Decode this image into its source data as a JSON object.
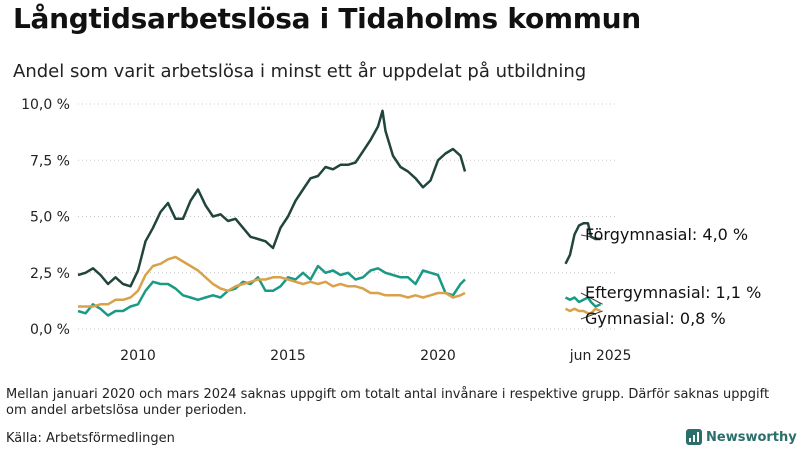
{
  "title": "Långtidsarbetslösa i Tidaholms kommun",
  "subtitle": "Andel som varit arbetslösa i minst ett år uppdelat på utbildning",
  "note": "Mellan januari 2020 och mars 2024 saknas uppgift om totalt antal invånare i respektive grupp. Därför saknas uppgift om andel arbetslösa under perioden.",
  "source": "Källa: Arbetsförmedlingen",
  "brand": {
    "name": "Newsworthy",
    "icon": "chart-bars-icon",
    "color": "#2b6f6b"
  },
  "chart_data": {
    "type": "line",
    "title": "",
    "xlabel": "",
    "ylabel": "",
    "x_ticks": [
      {
        "x": 2010.0,
        "label": "2010"
      },
      {
        "x": 2015.0,
        "label": "2015"
      },
      {
        "x": 2020.0,
        "label": "2020"
      },
      {
        "x": 2025.42,
        "label": "jun 2025"
      }
    ],
    "y_ticks": [
      {
        "y": 0.0,
        "label": "0,0 %"
      },
      {
        "y": 2.5,
        "label": "2,5 %"
      },
      {
        "y": 5.0,
        "label": "5,0 %"
      },
      {
        "y": 7.5,
        "label": "7,5 %"
      },
      {
        "y": 10.0,
        "label": "10,0 %"
      }
    ],
    "ylim": [
      0,
      10
    ],
    "xlim": [
      2008.0,
      2026.0
    ],
    "grid": "horizontal, dotted, at y ticks",
    "gap": {
      "from": 2020.0,
      "to": 2024.25
    },
    "series": [
      {
        "name": "Förgymnasial",
        "end_label": "Förgymnasial: 4,0 %",
        "color": "#21453d",
        "points": [
          [
            2008.0,
            2.4
          ],
          [
            2008.25,
            2.5
          ],
          [
            2008.5,
            2.7
          ],
          [
            2008.75,
            2.4
          ],
          [
            2009.0,
            2.0
          ],
          [
            2009.25,
            2.3
          ],
          [
            2009.5,
            2.0
          ],
          [
            2009.75,
            1.9
          ],
          [
            2010.0,
            2.6
          ],
          [
            2010.25,
            3.9
          ],
          [
            2010.5,
            4.5
          ],
          [
            2010.75,
            5.2
          ],
          [
            2011.0,
            5.6
          ],
          [
            2011.25,
            4.9
          ],
          [
            2011.5,
            4.9
          ],
          [
            2011.75,
            5.7
          ],
          [
            2012.0,
            6.2
          ],
          [
            2012.25,
            5.5
          ],
          [
            2012.5,
            5.0
          ],
          [
            2012.75,
            5.1
          ],
          [
            2013.0,
            4.8
          ],
          [
            2013.25,
            4.9
          ],
          [
            2013.5,
            4.5
          ],
          [
            2013.75,
            4.1
          ],
          [
            2014.0,
            4.0
          ],
          [
            2014.25,
            3.9
          ],
          [
            2014.5,
            3.6
          ],
          [
            2014.75,
            4.5
          ],
          [
            2015.0,
            5.0
          ],
          [
            2015.25,
            5.7
          ],
          [
            2015.5,
            6.2
          ],
          [
            2015.75,
            6.7
          ],
          [
            2016.0,
            6.8
          ],
          [
            2016.25,
            7.2
          ],
          [
            2016.5,
            7.1
          ],
          [
            2016.75,
            7.3
          ],
          [
            2017.0,
            7.3
          ],
          [
            2017.25,
            7.4
          ],
          [
            2017.5,
            7.9
          ],
          [
            2017.75,
            8.4
          ],
          [
            2018.0,
            9.0
          ],
          [
            2018.15,
            9.7
          ],
          [
            2018.25,
            8.8
          ],
          [
            2018.5,
            7.7
          ],
          [
            2018.75,
            7.2
          ],
          [
            2019.0,
            7.0
          ],
          [
            2019.25,
            6.7
          ],
          [
            2019.5,
            6.3
          ],
          [
            2019.75,
            6.6
          ],
          [
            2020.0,
            7.5
          ],
          [
            2020.25,
            7.8
          ],
          [
            2020.5,
            8.0
          ],
          [
            2020.75,
            7.7
          ],
          [
            2020.9,
            7.0
          ]
        ],
        "points_after_gap": [
          [
            2024.25,
            2.9
          ],
          [
            2024.4,
            3.3
          ],
          [
            2024.55,
            4.2
          ],
          [
            2024.7,
            4.6
          ],
          [
            2024.85,
            4.7
          ],
          [
            2025.0,
            4.7
          ],
          [
            2025.1,
            4.1
          ],
          [
            2025.25,
            4.0
          ],
          [
            2025.42,
            4.0
          ]
        ]
      },
      {
        "name": "Eftergymnasial",
        "end_label": "Eftergymnasial: 1,1 %",
        "color": "#1a9a85",
        "points": [
          [
            2008.0,
            0.8
          ],
          [
            2008.25,
            0.7
          ],
          [
            2008.5,
            1.1
          ],
          [
            2008.75,
            0.9
          ],
          [
            2009.0,
            0.6
          ],
          [
            2009.25,
            0.8
          ],
          [
            2009.5,
            0.8
          ],
          [
            2009.75,
            1.0
          ],
          [
            2010.0,
            1.1
          ],
          [
            2010.25,
            1.7
          ],
          [
            2010.5,
            2.1
          ],
          [
            2010.75,
            2.0
          ],
          [
            2011.0,
            2.0
          ],
          [
            2011.25,
            1.8
          ],
          [
            2011.5,
            1.5
          ],
          [
            2011.75,
            1.4
          ],
          [
            2012.0,
            1.3
          ],
          [
            2012.25,
            1.4
          ],
          [
            2012.5,
            1.5
          ],
          [
            2012.75,
            1.4
          ],
          [
            2013.0,
            1.7
          ],
          [
            2013.25,
            1.8
          ],
          [
            2013.5,
            2.1
          ],
          [
            2013.75,
            2.0
          ],
          [
            2014.0,
            2.3
          ],
          [
            2014.25,
            1.7
          ],
          [
            2014.5,
            1.7
          ],
          [
            2014.75,
            1.9
          ],
          [
            2015.0,
            2.3
          ],
          [
            2015.25,
            2.2
          ],
          [
            2015.5,
            2.5
          ],
          [
            2015.75,
            2.2
          ],
          [
            2016.0,
            2.8
          ],
          [
            2016.25,
            2.5
          ],
          [
            2016.5,
            2.6
          ],
          [
            2016.75,
            2.4
          ],
          [
            2017.0,
            2.5
          ],
          [
            2017.25,
            2.2
          ],
          [
            2017.5,
            2.3
          ],
          [
            2017.75,
            2.6
          ],
          [
            2018.0,
            2.7
          ],
          [
            2018.25,
            2.5
          ],
          [
            2018.5,
            2.4
          ],
          [
            2018.75,
            2.3
          ],
          [
            2019.0,
            2.3
          ],
          [
            2019.25,
            2.0
          ],
          [
            2019.5,
            2.6
          ],
          [
            2019.75,
            2.5
          ],
          [
            2020.0,
            2.4
          ],
          [
            2020.25,
            1.6
          ],
          [
            2020.5,
            1.5
          ],
          [
            2020.75,
            2.0
          ],
          [
            2020.9,
            2.2
          ]
        ],
        "points_after_gap": [
          [
            2024.25,
            1.4
          ],
          [
            2024.4,
            1.3
          ],
          [
            2024.55,
            1.4
          ],
          [
            2024.7,
            1.2
          ],
          [
            2024.85,
            1.3
          ],
          [
            2025.0,
            1.4
          ],
          [
            2025.1,
            1.2
          ],
          [
            2025.25,
            1.0
          ],
          [
            2025.42,
            1.1
          ]
        ]
      },
      {
        "name": "Gymnasial",
        "end_label": "Gymnasial: 0,8 %",
        "color": "#d9a24a",
        "points": [
          [
            2008.0,
            1.0
          ],
          [
            2008.25,
            1.0
          ],
          [
            2008.5,
            1.0
          ],
          [
            2008.75,
            1.1
          ],
          [
            2009.0,
            1.1
          ],
          [
            2009.25,
            1.3
          ],
          [
            2009.5,
            1.3
          ],
          [
            2009.75,
            1.4
          ],
          [
            2010.0,
            1.7
          ],
          [
            2010.25,
            2.4
          ],
          [
            2010.5,
            2.8
          ],
          [
            2010.75,
            2.9
          ],
          [
            2011.0,
            3.1
          ],
          [
            2011.25,
            3.2
          ],
          [
            2011.5,
            3.0
          ],
          [
            2011.75,
            2.8
          ],
          [
            2012.0,
            2.6
          ],
          [
            2012.25,
            2.3
          ],
          [
            2012.5,
            2.0
          ],
          [
            2012.75,
            1.8
          ],
          [
            2013.0,
            1.7
          ],
          [
            2013.25,
            1.9
          ],
          [
            2013.5,
            2.0
          ],
          [
            2013.75,
            2.1
          ],
          [
            2014.0,
            2.2
          ],
          [
            2014.25,
            2.2
          ],
          [
            2014.5,
            2.3
          ],
          [
            2014.75,
            2.3
          ],
          [
            2015.0,
            2.2
          ],
          [
            2015.25,
            2.1
          ],
          [
            2015.5,
            2.0
          ],
          [
            2015.75,
            2.1
          ],
          [
            2016.0,
            2.0
          ],
          [
            2016.25,
            2.1
          ],
          [
            2016.5,
            1.9
          ],
          [
            2016.75,
            2.0
          ],
          [
            2017.0,
            1.9
          ],
          [
            2017.25,
            1.9
          ],
          [
            2017.5,
            1.8
          ],
          [
            2017.75,
            1.6
          ],
          [
            2018.0,
            1.6
          ],
          [
            2018.25,
            1.5
          ],
          [
            2018.5,
            1.5
          ],
          [
            2018.75,
            1.5
          ],
          [
            2019.0,
            1.4
          ],
          [
            2019.25,
            1.5
          ],
          [
            2019.5,
            1.4
          ],
          [
            2019.75,
            1.5
          ],
          [
            2020.0,
            1.6
          ],
          [
            2020.25,
            1.6
          ],
          [
            2020.5,
            1.4
          ],
          [
            2020.75,
            1.5
          ],
          [
            2020.9,
            1.6
          ]
        ],
        "points_after_gap": [
          [
            2024.25,
            0.9
          ],
          [
            2024.4,
            0.8
          ],
          [
            2024.55,
            0.9
          ],
          [
            2024.7,
            0.8
          ],
          [
            2024.85,
            0.8
          ],
          [
            2025.0,
            0.7
          ],
          [
            2025.1,
            0.7
          ],
          [
            2025.25,
            0.9
          ],
          [
            2025.42,
            0.8
          ]
        ]
      }
    ]
  }
}
